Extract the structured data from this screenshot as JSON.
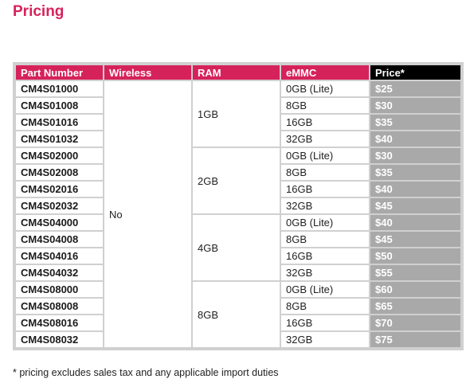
{
  "page": {
    "title": "Pricing",
    "footnote": "* pricing excludes sales tax and any applicable import duties"
  },
  "colors": {
    "accent": "#d6225a",
    "price_header": "#000000",
    "price_cell": "#a9a9a9"
  },
  "table": {
    "headers": {
      "part_number": "Part Number",
      "wireless": "Wireless",
      "ram": "RAM",
      "emmc": "eMMC",
      "price": "Price*"
    },
    "wireless_value": "No",
    "groups": [
      {
        "ram": "1GB",
        "rows": [
          {
            "part": "CM4S01000",
            "emmc": "0GB (Lite)",
            "price": "$25"
          },
          {
            "part": "CM4S01008",
            "emmc": "8GB",
            "price": "$30"
          },
          {
            "part": "CM4S01016",
            "emmc": "16GB",
            "price": "$35"
          },
          {
            "part": "CM4S01032",
            "emmc": "32GB",
            "price": "$40"
          }
        ]
      },
      {
        "ram": "2GB",
        "rows": [
          {
            "part": "CM4S02000",
            "emmc": "0GB (Lite)",
            "price": "$30"
          },
          {
            "part": "CM4S02008",
            "emmc": "8GB",
            "price": "$35"
          },
          {
            "part": "CM4S02016",
            "emmc": "16GB",
            "price": "$40"
          },
          {
            "part": "CM4S02032",
            "emmc": "32GB",
            "price": "$45"
          }
        ]
      },
      {
        "ram": "4GB",
        "rows": [
          {
            "part": "CM4S04000",
            "emmc": "0GB (Lite)",
            "price": "$40"
          },
          {
            "part": "CM4S04008",
            "emmc": "8GB",
            "price": "$45"
          },
          {
            "part": "CM4S04016",
            "emmc": "16GB",
            "price": "$50"
          },
          {
            "part": "CM4S04032",
            "emmc": "32GB",
            "price": "$55"
          }
        ]
      },
      {
        "ram": "8GB",
        "rows": [
          {
            "part": "CM4S08000",
            "emmc": "0GB (Lite)",
            "price": "$60"
          },
          {
            "part": "CM4S08008",
            "emmc": "8GB",
            "price": "$65"
          },
          {
            "part": "CM4S08016",
            "emmc": "16GB",
            "price": "$70"
          },
          {
            "part": "CM4S08032",
            "emmc": "32GB",
            "price": "$75"
          }
        ]
      }
    ]
  }
}
